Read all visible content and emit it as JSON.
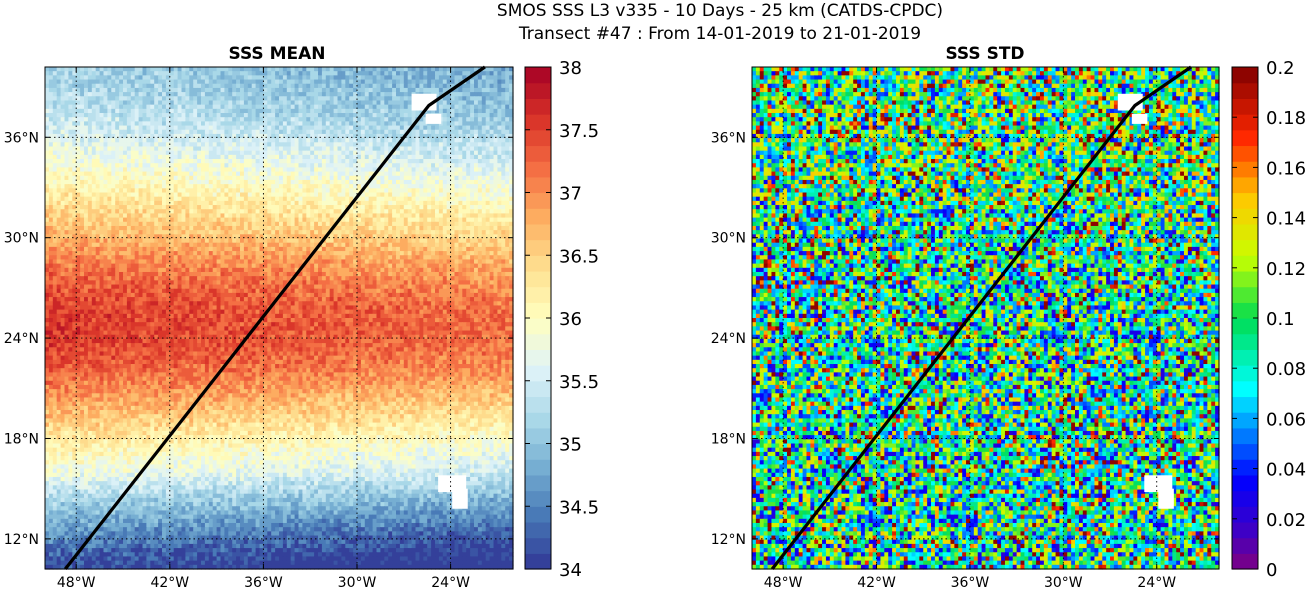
{
  "header": {
    "line1": "SMOS SSS L3 v335 - 10 Days - 25 km (CATDS-CPDC)",
    "line2": "Transect #47 : From 14-01-2019 to 21-01-2019"
  },
  "chart_data": [
    {
      "type": "heatmap",
      "title": "SSS MEAN",
      "x_ticks": [
        "48°W",
        "42°W",
        "36°W",
        "30°W",
        "24°W"
      ],
      "x_tick_values": [
        -48,
        -42,
        -36,
        -30,
        -24
      ],
      "y_ticks": [
        "12°N",
        "18°N",
        "24°N",
        "30°N",
        "36°N"
      ],
      "y_tick_values": [
        12,
        18,
        24,
        30,
        36
      ],
      "xlim": [
        -50,
        -20
      ],
      "ylim": [
        10.2,
        40.2
      ],
      "grid": true,
      "colorbar": {
        "colormap": "RdYlBu_r",
        "clim": [
          34,
          38
        ],
        "ticks": [
          "34",
          "34.5",
          "35",
          "35.5",
          "36",
          "36.5",
          "37",
          "37.5",
          "38"
        ],
        "tick_values": [
          34,
          34.5,
          35,
          35.5,
          36,
          36.5,
          37,
          37.5,
          38
        ]
      },
      "transect": {
        "lon": [
          -48.7,
          -25.4,
          -21.8
        ],
        "lat": [
          10.2,
          37.9,
          40.2
        ],
        "color": "#000000"
      }
    },
    {
      "type": "heatmap",
      "title": "SSS STD",
      "x_ticks": [
        "48°W",
        "42°W",
        "36°W",
        "30°W",
        "24°W"
      ],
      "x_tick_values": [
        -48,
        -42,
        -36,
        -30,
        -24
      ],
      "y_ticks": [
        "12°N",
        "18°N",
        "24°N",
        "30°N",
        "36°N"
      ],
      "y_tick_values": [
        12,
        18,
        24,
        30,
        36
      ],
      "xlim": [
        -50,
        -20
      ],
      "ylim": [
        10.2,
        40.2
      ],
      "grid": true,
      "colorbar": {
        "colormap": "jet",
        "clim": [
          0,
          0.2
        ],
        "ticks": [
          "0",
          "0.02",
          "0.04",
          "0.06",
          "0.08",
          "0.1",
          "0.12",
          "0.14",
          "0.16",
          "0.18",
          "0.2"
        ],
        "tick_values": [
          0,
          0.02,
          0.04,
          0.06,
          0.08,
          0.1,
          0.12,
          0.14,
          0.16,
          0.18,
          0.2
        ]
      },
      "transect": {
        "lon": [
          -48.7,
          -25.4,
          -21.8
        ],
        "lat": [
          10.2,
          37.9,
          40.2
        ],
        "color": "#000000"
      }
    }
  ]
}
